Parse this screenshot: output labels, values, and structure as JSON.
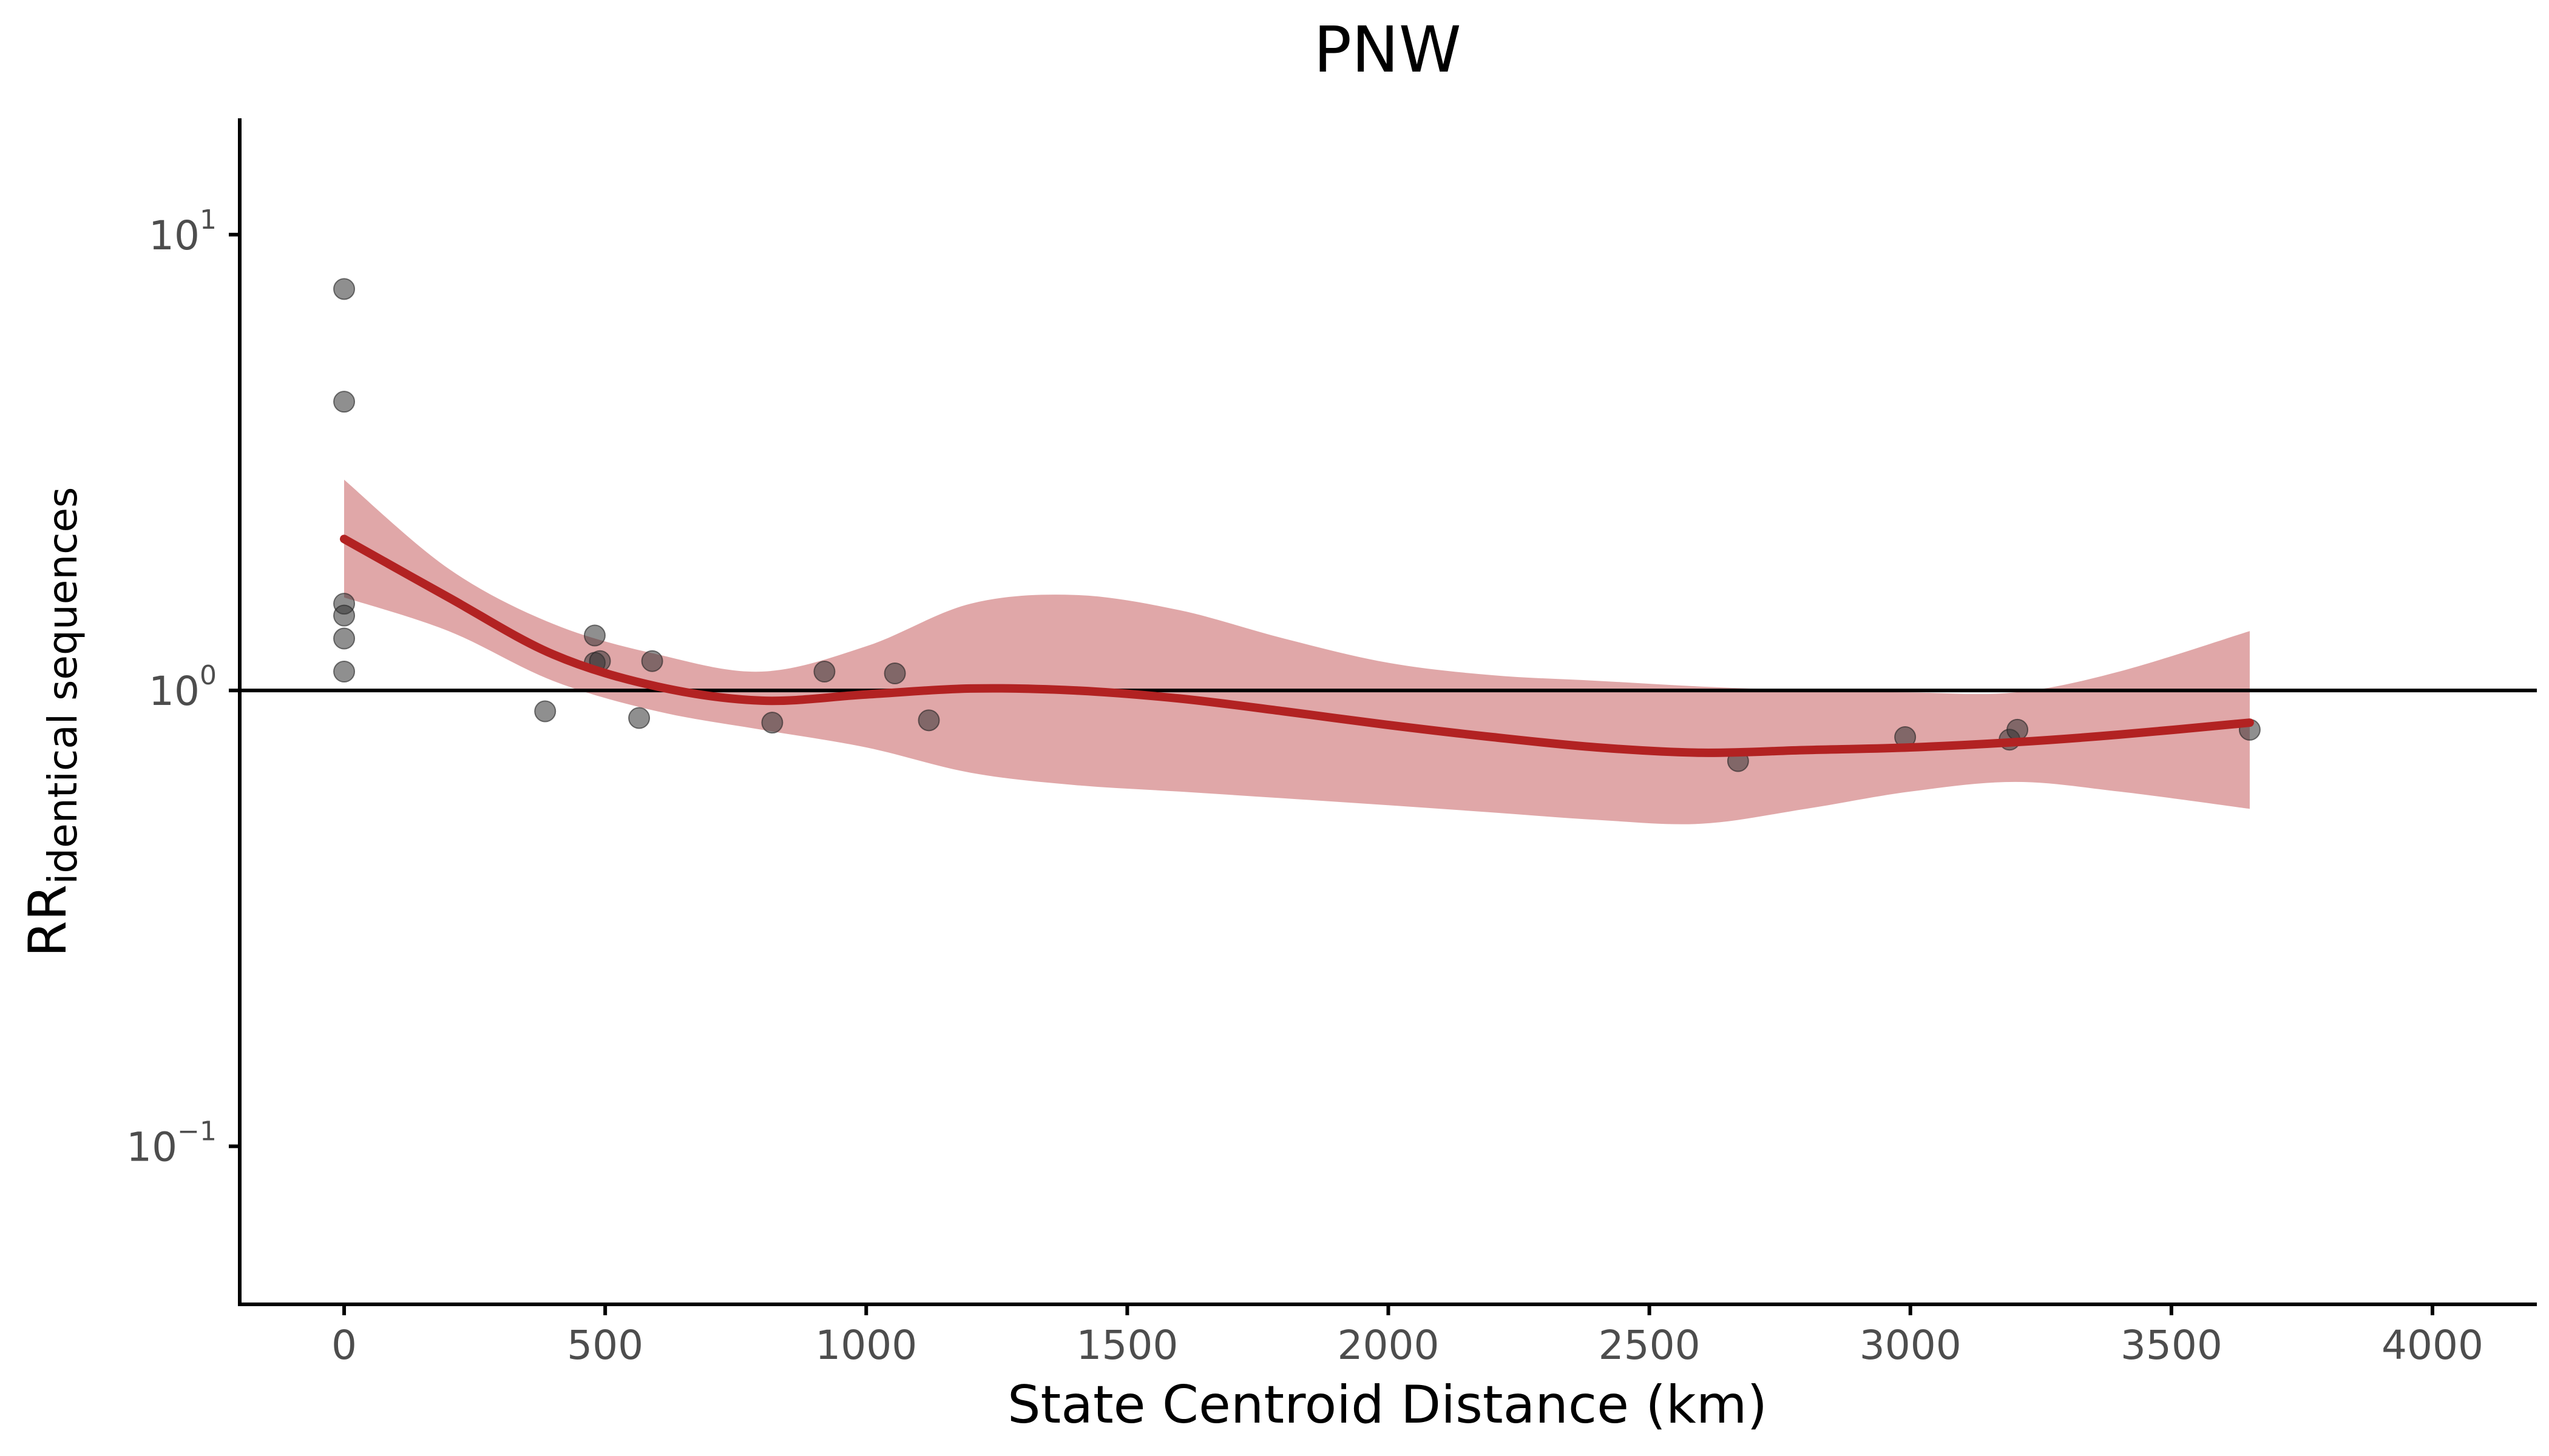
{
  "chart_data": {
    "type": "scatter",
    "title": "PNW",
    "xlabel": "State Centroid Distance (km)",
    "ylabel": {
      "main": "RR",
      "subscript": "identical sequences"
    },
    "x_ticks": [
      0,
      500,
      1000,
      1500,
      2000,
      2500,
      3000,
      3500,
      4000
    ],
    "x_tick_labels": [
      "0",
      "500",
      "1000",
      "1500",
      "2000",
      "2500",
      "3000",
      "3500",
      "4000"
    ],
    "xlim": [
      -200,
      4200
    ],
    "y_scale": "log",
    "ylim": [
      0.045,
      18
    ],
    "y_ticks": [
      0.1,
      1,
      10
    ],
    "y_tick_labels": [
      {
        "base": "10",
        "exp": "−1"
      },
      {
        "base": "10",
        "exp": "0"
      },
      {
        "base": "10",
        "exp": "1"
      }
    ],
    "reference_line_y": 1,
    "grid": false,
    "colors": {
      "fit_line": "#b22222",
      "ci_band": "#e0a7a8",
      "points": "#333333",
      "axis": "#000000"
    },
    "points": [
      {
        "x": 0,
        "y": 7.6
      },
      {
        "x": 0,
        "y": 4.3
      },
      {
        "x": 0,
        "y": 1.55
      },
      {
        "x": 0,
        "y": 1.46
      },
      {
        "x": 0,
        "y": 1.3
      },
      {
        "x": 0,
        "y": 1.1
      },
      {
        "x": 385,
        "y": 0.9
      },
      {
        "x": 480,
        "y": 1.32
      },
      {
        "x": 480,
        "y": 1.15
      },
      {
        "x": 490,
        "y": 1.16
      },
      {
        "x": 565,
        "y": 0.87
      },
      {
        "x": 590,
        "y": 1.16
      },
      {
        "x": 820,
        "y": 0.85
      },
      {
        "x": 920,
        "y": 1.1
      },
      {
        "x": 1055,
        "y": 1.09
      },
      {
        "x": 1120,
        "y": 0.86
      },
      {
        "x": 2670,
        "y": 0.7
      },
      {
        "x": 2990,
        "y": 0.79
      },
      {
        "x": 3190,
        "y": 0.78
      },
      {
        "x": 3205,
        "y": 0.82
      },
      {
        "x": 3650,
        "y": 0.82
      }
    ],
    "fit": {
      "x": [
        0,
        200,
        400,
        600,
        800,
        1000,
        1200,
        1400,
        1600,
        1800,
        2000,
        2200,
        2400,
        2600,
        2800,
        3000,
        3200,
        3400,
        3650
      ],
      "y": [
        2.15,
        1.6,
        1.2,
        1.02,
        0.95,
        0.98,
        1.01,
        1.0,
        0.96,
        0.9,
        0.84,
        0.79,
        0.75,
        0.73,
        0.74,
        0.75,
        0.77,
        0.8,
        0.85
      ],
      "lower": [
        1.6,
        1.35,
        1.05,
        0.9,
        0.82,
        0.75,
        0.66,
        0.62,
        0.6,
        0.58,
        0.56,
        0.54,
        0.52,
        0.51,
        0.55,
        0.6,
        0.63,
        0.6,
        0.55
      ],
      "upper": [
        2.9,
        1.85,
        1.4,
        1.2,
        1.1,
        1.25,
        1.55,
        1.62,
        1.5,
        1.3,
        1.15,
        1.08,
        1.05,
        1.02,
        1.0,
        0.99,
        0.99,
        1.1,
        1.35
      ]
    }
  }
}
